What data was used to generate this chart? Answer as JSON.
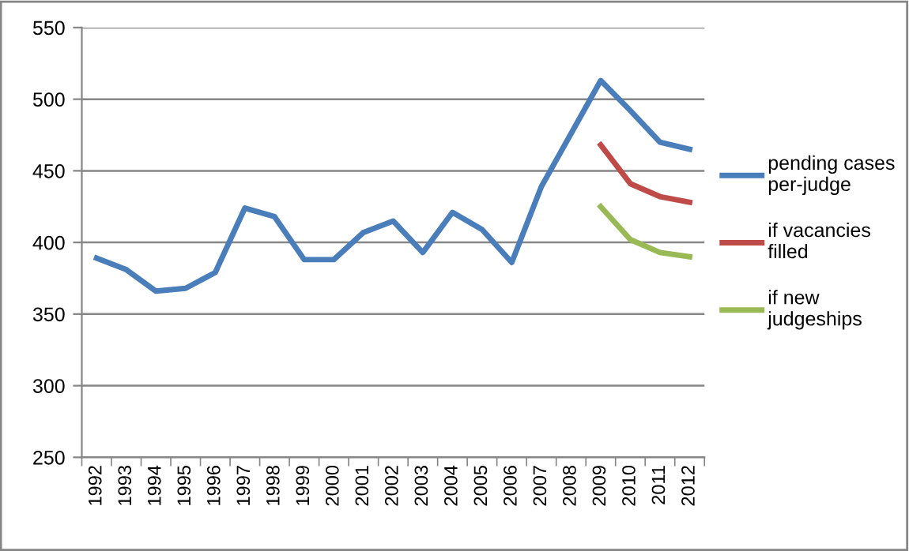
{
  "chart_data": {
    "type": "line",
    "categories": [
      "1992",
      "1993",
      "1994",
      "1995",
      "1996",
      "1997",
      "1998",
      "1999",
      "2000",
      "2001",
      "2002",
      "2003",
      "2004",
      "2005",
      "2006",
      "2007",
      "2008",
      "2009",
      "2010",
      "2011",
      "2012"
    ],
    "series": [
      {
        "name": "pending cases per-judge",
        "color": "#4a7ebb",
        "values": [
          389,
          381,
          366,
          368,
          379,
          424,
          418,
          388,
          388,
          407,
          415,
          393,
          421,
          409,
          386,
          439,
          476,
          513,
          492,
          470,
          465
        ]
      },
      {
        "name": "if vacancies filled",
        "color": "#be4b48",
        "values": [
          null,
          null,
          null,
          null,
          null,
          null,
          null,
          null,
          null,
          null,
          null,
          null,
          null,
          null,
          null,
          null,
          null,
          468,
          441,
          432,
          428
        ]
      },
      {
        "name": "if new judgeships",
        "color": "#98b954",
        "values": [
          null,
          null,
          null,
          null,
          null,
          null,
          null,
          null,
          null,
          null,
          null,
          null,
          null,
          null,
          null,
          null,
          null,
          425,
          402,
          393,
          390
        ]
      }
    ],
    "ylim": [
      250,
      550
    ],
    "yticks": [
      250,
      300,
      350,
      400,
      450,
      500,
      550
    ],
    "grid": "y",
    "legend": "right",
    "marker": "none",
    "line_style": "solid"
  }
}
